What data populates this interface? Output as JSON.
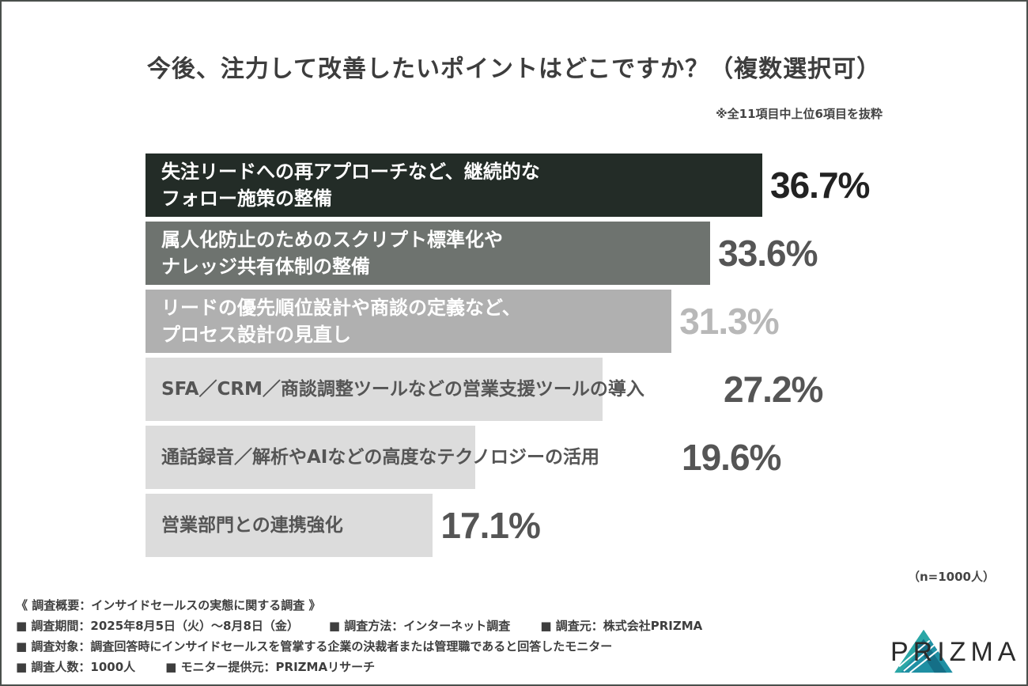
{
  "title": "今後、注力して改善したいポイントはどこですか？（複数選択可）",
  "note": "※全11項目中上位6項目を抜粋",
  "sample_note": "（n=1000人）",
  "colors": {
    "bar": [
      "#232c27",
      "#6e736f",
      "#b0b0b0",
      "#dcdcdc",
      "#dcdcdc",
      "#dcdcdc"
    ],
    "label": [
      "#ffffff",
      "#ffffff",
      "#ffffff",
      "#555555",
      "#555555",
      "#555555"
    ],
    "value": [
      "#222222",
      "#555555",
      "#b8b8b8",
      "#555555",
      "#555555",
      "#555555"
    ]
  },
  "chart_data": {
    "type": "bar",
    "orientation": "horizontal",
    "categories": [
      "失注リードへの再アプローチなど、継続的な\nフォロー施策の整備",
      "属人化防止のためのスクリプト標準化や\nナレッジ共有体制の整備",
      "リードの優先順位設計や商談の定義など、\nプロセス設計の見直し",
      "SFA／CRM／商談調整ツールなどの営業支援ツールの導入",
      "通話録音／解析やAIなどの高度なテクノロジーの活用",
      "営業部門との連携強化"
    ],
    "values": [
      36.7,
      33.6,
      31.3,
      27.2,
      19.6,
      17.1
    ],
    "value_labels": [
      "36.7%",
      "33.6%",
      "31.3%",
      "27.2%",
      "19.6%",
      "17.1%"
    ],
    "unit": "%"
  },
  "footer": {
    "heading": "《 調査概要：インサイドセールスの実態に関する調査 》",
    "period": "■ 調査期間：2025年8月5日（火）〜8月8日（金）",
    "method": "■ 調査方法：インターネット調査",
    "source": "■ 調査元：株式会社PRIZMA",
    "target": "■ 調査対象：調査回答時にインサイドセールスを管掌する企業の決裁者または管理職であると回答したモニター",
    "count": "■ 調査人数：1000人",
    "provider": "■ モニター提供元：PRIZMAリサーチ"
  },
  "logo": {
    "text": "PRIZMA",
    "icon": "prism-triangle-icon"
  }
}
